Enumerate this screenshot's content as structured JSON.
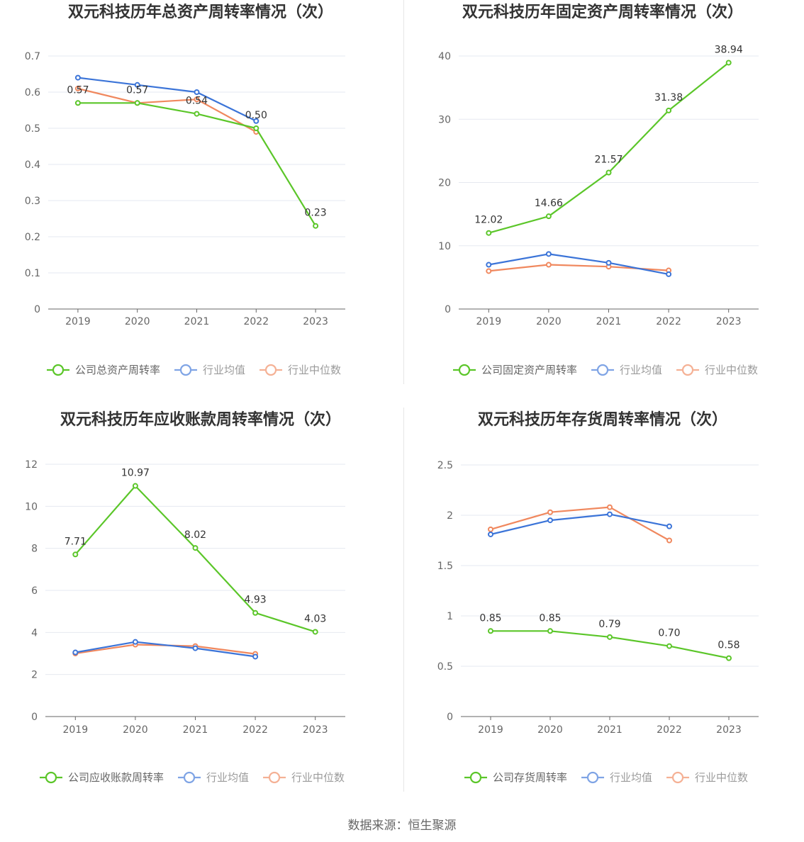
{
  "source": "数据来源：恒生聚源",
  "colors": {
    "company": "#5bc629",
    "avg": "#3b74d8",
    "median": "#f0885e",
    "axis": "#666666",
    "grid": "#e6e9f0"
  },
  "chart_data": [
    {
      "type": "line",
      "title": "双元科技历年总资产周转率情况（次）",
      "categories": [
        "2019",
        "2020",
        "2021",
        "2022",
        "2023"
      ],
      "ylim": [
        0,
        0.7
      ],
      "yticks": [
        0,
        0.1,
        0.2,
        0.3,
        0.4,
        0.5,
        0.6,
        0.7
      ],
      "ytick_labels": [
        "0",
        "0.1",
        "0.2",
        "0.3",
        "0.4",
        "0.5",
        "0.6",
        "0.7"
      ],
      "grid": true,
      "legend_position": "bottom",
      "series": [
        {
          "name": "公司总资产周转率",
          "role": "company",
          "values": [
            0.57,
            0.57,
            0.54,
            0.5,
            0.23
          ],
          "labels": [
            "0.57",
            "0.57",
            "0.54",
            "0.50",
            "0.23"
          ]
        },
        {
          "name": "行业均值",
          "role": "avg",
          "values": [
            0.64,
            0.62,
            0.6,
            0.52,
            null
          ]
        },
        {
          "name": "行业中位数",
          "role": "median",
          "values": [
            0.61,
            0.57,
            0.58,
            0.49,
            null
          ]
        }
      ]
    },
    {
      "type": "line",
      "title": "双元科技历年固定资产周转率情况（次）",
      "categories": [
        "2019",
        "2020",
        "2021",
        "2022",
        "2023"
      ],
      "ylim": [
        0,
        40
      ],
      "yticks": [
        0,
        10,
        20,
        30,
        40
      ],
      "ytick_labels": [
        "0",
        "10",
        "20",
        "30",
        "40"
      ],
      "grid": true,
      "legend_position": "bottom",
      "series": [
        {
          "name": "公司固定资产周转率",
          "role": "company",
          "values": [
            12.02,
            14.66,
            21.57,
            31.38,
            38.94
          ],
          "labels": [
            "12.02",
            "14.66",
            "21.57",
            "31.38",
            "38.94"
          ]
        },
        {
          "name": "行业均值",
          "role": "avg",
          "values": [
            7.0,
            8.7,
            7.3,
            5.5,
            null
          ]
        },
        {
          "name": "行业中位数",
          "role": "median",
          "values": [
            6.0,
            7.0,
            6.7,
            6.1,
            null
          ]
        }
      ]
    },
    {
      "type": "line",
      "title": "双元科技历年应收账款周转率情况（次）",
      "categories": [
        "2019",
        "2020",
        "2021",
        "2022",
        "2023"
      ],
      "ylim": [
        0,
        12
      ],
      "yticks": [
        0,
        2,
        4,
        6,
        8,
        10,
        12
      ],
      "ytick_labels": [
        "0",
        "2",
        "4",
        "6",
        "8",
        "10",
        "12"
      ],
      "grid": true,
      "legend_position": "bottom",
      "series": [
        {
          "name": "公司应收账款周转率",
          "role": "company",
          "values": [
            7.71,
            10.97,
            8.02,
            4.93,
            4.03
          ],
          "labels": [
            "7.71",
            "10.97",
            "8.02",
            "4.93",
            "4.03"
          ]
        },
        {
          "name": "行业均值",
          "role": "avg",
          "values": [
            3.05,
            3.55,
            3.25,
            2.85,
            null
          ]
        },
        {
          "name": "行业中位数",
          "role": "median",
          "values": [
            3.0,
            3.42,
            3.35,
            2.98,
            null
          ]
        }
      ]
    },
    {
      "type": "line",
      "title": "双元科技历年存货周转率情况（次）",
      "categories": [
        "2019",
        "2020",
        "2021",
        "2022",
        "2023"
      ],
      "ylim": [
        0,
        2.5
      ],
      "yticks": [
        0,
        0.5,
        1,
        1.5,
        2,
        2.5
      ],
      "ytick_labels": [
        "0",
        "0.5",
        "1",
        "1.5",
        "2",
        "2.5"
      ],
      "grid": true,
      "legend_position": "bottom",
      "series": [
        {
          "name": "公司存货周转率",
          "role": "company",
          "values": [
            0.85,
            0.85,
            0.79,
            0.7,
            0.58
          ],
          "labels": [
            "0.85",
            "0.85",
            "0.79",
            "0.70",
            "0.58"
          ]
        },
        {
          "name": "行业均值",
          "role": "avg",
          "values": [
            1.81,
            1.95,
            2.01,
            1.89,
            null
          ]
        },
        {
          "name": "行业中位数",
          "role": "median",
          "values": [
            1.86,
            2.03,
            2.08,
            1.75,
            null
          ]
        }
      ]
    }
  ]
}
